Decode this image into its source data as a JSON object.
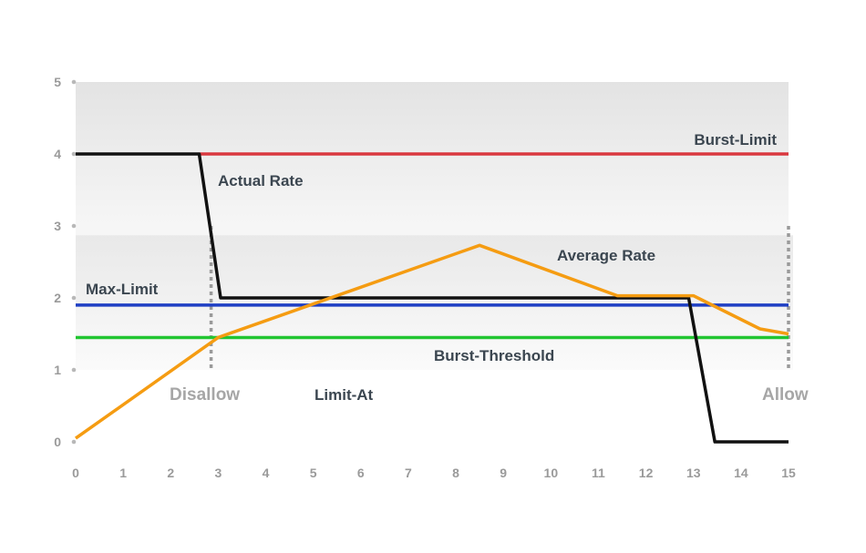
{
  "chart_data": {
    "type": "line",
    "xlim": [
      0,
      15
    ],
    "ylim": [
      0,
      5
    ],
    "x_ticks": [
      "0",
      "1",
      "2",
      "3",
      "4",
      "5",
      "6",
      "7",
      "8",
      "9",
      "10",
      "11",
      "12",
      "13",
      "14",
      "15"
    ],
    "y_ticks": [
      "0",
      "1",
      "2",
      "3",
      "4",
      "5"
    ],
    "series": [
      {
        "name": "Actual Rate",
        "color": "#111111",
        "points": [
          [
            0,
            4
          ],
          [
            2.6,
            4
          ],
          [
            3.05,
            2
          ],
          [
            12.9,
            2
          ],
          [
            13.45,
            0
          ],
          [
            15,
            0
          ]
        ]
      },
      {
        "name": "Average Rate",
        "color": "#f59c12",
        "points": [
          [
            0,
            0.05
          ],
          [
            3,
            1.45
          ],
          [
            8.5,
            2.73
          ],
          [
            11.4,
            2.03
          ],
          [
            13,
            2.03
          ],
          [
            14.4,
            1.57
          ],
          [
            15,
            1.5
          ]
        ]
      }
    ],
    "reference_lines": [
      {
        "name": "Burst-Limit",
        "y": 4.0,
        "x_start": 2.6,
        "x_end": 15,
        "color": "#d9383f"
      },
      {
        "name": "Max-Limit",
        "y": 1.9,
        "x_start": 0,
        "x_end": 15,
        "color": "#1f3fc4"
      },
      {
        "name": "Burst-Threshold",
        "y": 1.45,
        "x_start": 0,
        "x_end": 15,
        "color": "#22c531"
      }
    ],
    "dotted_markers": [
      {
        "x": 2.85,
        "y_from": 1.0,
        "y_to": 3.0
      },
      {
        "x": 15,
        "y_from": 1.0,
        "y_to": 3.0
      }
    ],
    "annotations": {
      "burst_limit": "Burst-Limit",
      "actual_rate": "Actual Rate",
      "average_rate": "Average Rate",
      "max_limit": "Max-Limit",
      "burst_threshold": "Burst-Threshold",
      "disallow": "Disallow",
      "limit_at": "Limit-At",
      "allow": "Allow"
    },
    "grid": false,
    "background_bands": true
  }
}
